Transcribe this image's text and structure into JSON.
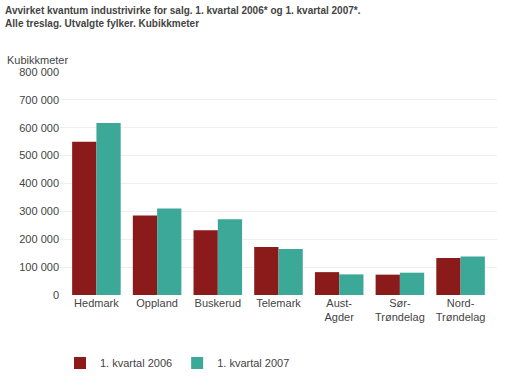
{
  "chart_data": {
    "type": "bar",
    "title": "Avvirket kvantum industrivirke for salg. 1. kvartal 2006* og 1. kvartal 2007*.",
    "subtitle": "Alle treslag. Utvalgte fylker. Kubikkmeter",
    "ylabel": "Kubikkmeter",
    "categories": [
      "Hedmark",
      "Oppland",
      "Buskerud",
      "Telemark",
      "Aust-\nAgder",
      "Sør-\nTrøndelag",
      "Nord-\nTrøndelag"
    ],
    "series": [
      {
        "name": "1. kvartal 2006",
        "color": "#8B1A1A",
        "values": [
          550000,
          285000,
          232000,
          172000,
          82000,
          73000,
          133000
        ]
      },
      {
        "name": "1. kvartal 2007",
        "color": "#3CA898",
        "values": [
          617000,
          310000,
          272000,
          165000,
          74000,
          80000,
          138000
        ]
      }
    ],
    "ylim": [
      0,
      800000
    ],
    "yticks": [
      0,
      {
        "value": 100000,
        "label": "100 000"
      },
      {
        "value": 200000,
        "label": "200 000"
      },
      {
        "value": 300000,
        "label": "300 000"
      },
      {
        "value": 400000,
        "label": "400 000"
      },
      {
        "value": 500000,
        "label": "500 000"
      },
      {
        "value": 600000,
        "label": "600 000"
      },
      {
        "value": 700000,
        "label": "700 000"
      },
      {
        "value": 800000,
        "label": "800 000"
      }
    ],
    "grid": true,
    "legend": "bottom"
  }
}
